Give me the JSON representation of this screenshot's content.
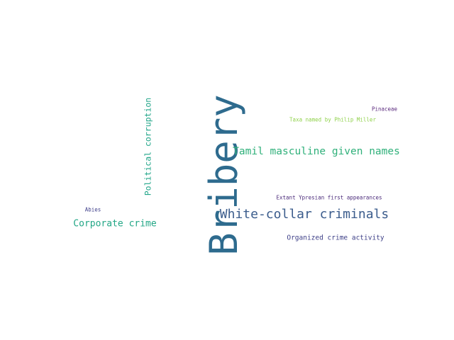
{
  "words": [
    {
      "text": "Bribery",
      "color": "#2e6b8e",
      "orientation": "vertical"
    },
    {
      "text": "White-collar criminals",
      "color": "#3b5c8c",
      "orientation": "horizontal"
    },
    {
      "text": "Tamil masculine given names",
      "color": "#2fb07a",
      "orientation": "horizontal"
    },
    {
      "text": "Political corruption",
      "color": "#23a68a",
      "orientation": "vertical"
    },
    {
      "text": "Corporate crime",
      "color": "#21a685",
      "orientation": "horizontal"
    },
    {
      "text": "Organized crime activity",
      "color": "#3d3f87",
      "orientation": "horizontal"
    },
    {
      "text": "Extant Ypresian first appearances",
      "color": "#4a2a7a",
      "orientation": "horizontal"
    },
    {
      "text": "Taxa named by Philip Miller",
      "color": "#8fd14a",
      "orientation": "horizontal"
    },
    {
      "text": "Pinaceae",
      "color": "#5b2a7e",
      "orientation": "horizontal"
    },
    {
      "text": "Abies",
      "color": "#3f3f8a",
      "orientation": "horizontal"
    }
  ]
}
